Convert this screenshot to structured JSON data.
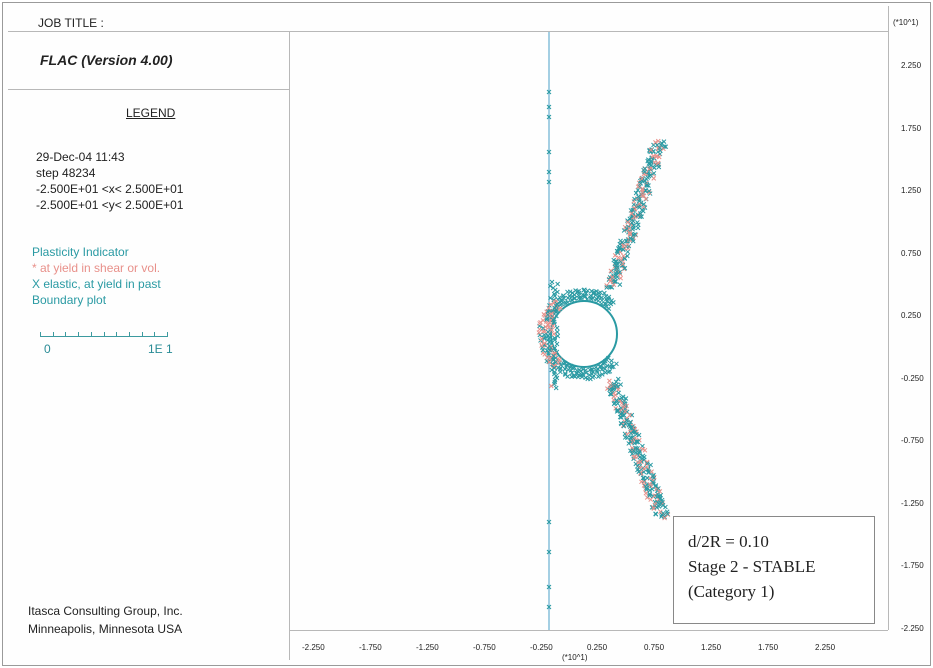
{
  "header": {
    "job_title": "JOB TITLE :",
    "version": "FLAC (Version 4.00)"
  },
  "legend": {
    "title": "LEGEND",
    "date": "29-Dec-04  11:43",
    "step": "step    48234",
    "x_range": "-2.500E+01 <x< 2.500E+01",
    "y_range": "-2.500E+01 <y< 2.500E+01",
    "plasticity_title": "Plasticity Indicator",
    "plasticity_shear": "* at yield in shear or vol.",
    "plasticity_elastic": "X elastic, at yield in past",
    "boundary": "Boundary plot",
    "scale_min": "0",
    "scale_max": "1E  1"
  },
  "footer": {
    "line1": "Itasca Consulting Group, Inc.",
    "line2": "Minneapolis, Minnesota  USA"
  },
  "axes": {
    "exponent": "(*10^1)",
    "y_ticks": [
      "2.250",
      "1.750",
      "1.250",
      "0.750",
      "0.250",
      "-0.250",
      "-0.750",
      "-1.250",
      "-1.750",
      "-2.250"
    ],
    "x_ticks": [
      "-2.250",
      "-1.750",
      "-1.250",
      "-0.750",
      "-0.250",
      "0.250",
      "0.750",
      "1.250",
      "1.750",
      "2.250"
    ]
  },
  "annotation": {
    "line1": "d/2R = 0.10",
    "line2": "Stage 2 - STABLE",
    "line3": "(Category 1)"
  },
  "colors": {
    "teal": "#2a9aa3",
    "salmon": "#e8908a",
    "boundary": "#4aa0c8"
  }
}
